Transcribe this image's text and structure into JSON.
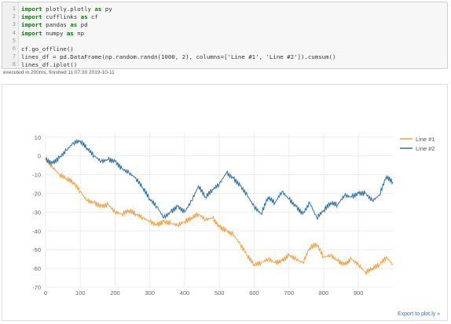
{
  "code_cell": {
    "line_numbers": [
      "1",
      "2",
      "3",
      "4",
      "5",
      "6",
      "7",
      "8"
    ],
    "lines": [
      {
        "kw1": "import",
        "rest": " plotly.plotly ",
        "kw2": "as",
        "tail": " py"
      },
      {
        "kw1": "import",
        "rest": " cufflinks ",
        "kw2": "as",
        "tail": " cf"
      },
      {
        "kw1": "import",
        "rest": " pandas ",
        "kw2": "as",
        "tail": " pd"
      },
      {
        "kw1": "import",
        "rest": " numpy ",
        "kw2": "as",
        "tail": " np"
      },
      {
        "kw1": "",
        "rest": "",
        "kw2": "",
        "tail": ""
      },
      {
        "kw1": "",
        "rest": "cf.go_offline()",
        "kw2": "",
        "tail": ""
      },
      {
        "kw1": "",
        "rest": "lines_df = pd.DataFrame(np.random.randn(1000, 2), columns=['Line #1', 'Line #2']).cumsum()",
        "kw2": "",
        "tail": ""
      },
      {
        "kw1": "",
        "rest": "lines_df.iplot()",
        "kw2": "",
        "tail": ""
      }
    ]
  },
  "exec_info": "executed in 200ms, finished 11:07:30 2019-10-11",
  "export_link": "Export to plot.ly »",
  "chart_data": {
    "type": "line",
    "xlim": [
      0,
      999
    ],
    "ylim": [
      -70,
      12
    ],
    "x_ticks": [
      0,
      100,
      200,
      300,
      400,
      500,
      600,
      700,
      800,
      900
    ],
    "y_ticks": [
      10,
      0,
      -10,
      -20,
      -30,
      -40,
      -50,
      -60,
      -70
    ],
    "grid": true,
    "legend_position": "top-right",
    "series": [
      {
        "name": "Line #1",
        "color": "#f0a040",
        "x": [
          0,
          20,
          40,
          60,
          80,
          100,
          120,
          140,
          160,
          180,
          200,
          220,
          240,
          260,
          280,
          300,
          320,
          340,
          360,
          380,
          400,
          420,
          440,
          460,
          480,
          500,
          520,
          540,
          560,
          580,
          600,
          620,
          640,
          660,
          680,
          700,
          720,
          740,
          760,
          780,
          800,
          820,
          840,
          860,
          880,
          900,
          920,
          940,
          960,
          980,
          999
        ],
        "values": [
          -2,
          -6,
          -10,
          -12,
          -14,
          -19,
          -24,
          -25,
          -27,
          -26,
          -30,
          -31,
          -29,
          -31,
          -33,
          -35,
          -37,
          -35,
          -36,
          -37,
          -35,
          -33,
          -31,
          -34,
          -33,
          -38,
          -40,
          -42,
          -47,
          -53,
          -58,
          -57,
          -55,
          -57,
          -56,
          -53,
          -55,
          -57,
          -49,
          -47,
          -54,
          -53,
          -56,
          -58,
          -55,
          -58,
          -62,
          -60,
          -58,
          -54,
          -58
        ]
      },
      {
        "name": "Line #2",
        "color": "#2f6fa2",
        "x": [
          0,
          20,
          40,
          60,
          80,
          100,
          120,
          140,
          160,
          180,
          200,
          220,
          240,
          260,
          280,
          300,
          320,
          340,
          360,
          380,
          400,
          420,
          440,
          460,
          480,
          500,
          520,
          540,
          560,
          580,
          600,
          620,
          640,
          660,
          680,
          700,
          720,
          740,
          760,
          780,
          800,
          820,
          840,
          860,
          880,
          900,
          920,
          940,
          960,
          980,
          999
        ],
        "values": [
          -2,
          -4,
          -1,
          3,
          7,
          8,
          4,
          0,
          -3,
          -2,
          -3,
          -7,
          -9,
          -12,
          -17,
          -23,
          -27,
          -33,
          -30,
          -27,
          -30,
          -24,
          -16,
          -22,
          -18,
          -15,
          -9,
          -12,
          -16,
          -21,
          -27,
          -31,
          -22,
          -25,
          -19,
          -23,
          -27,
          -31,
          -25,
          -33,
          -29,
          -25,
          -26,
          -21,
          -22,
          -20,
          -20,
          -24,
          -21,
          -11,
          -14
        ]
      }
    ]
  }
}
